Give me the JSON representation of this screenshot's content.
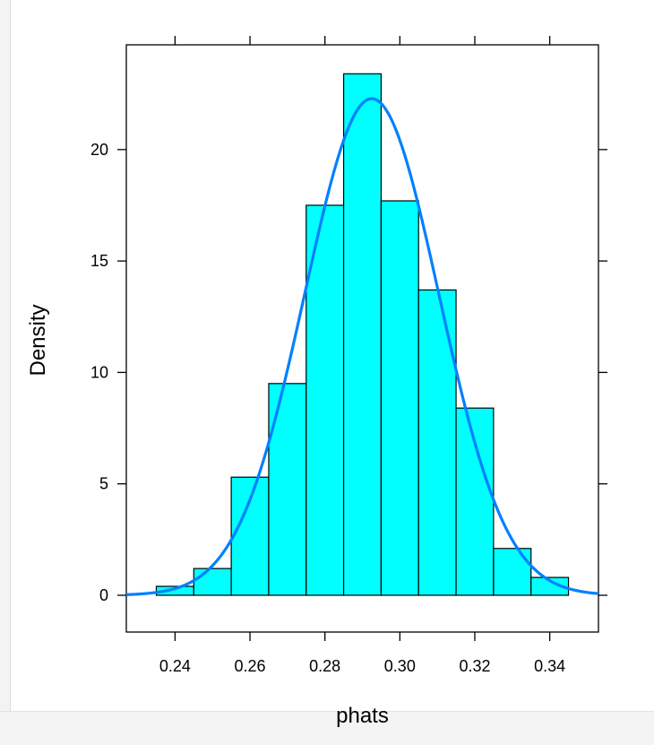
{
  "chart_data": {
    "type": "bar",
    "xlabel": "phats",
    "ylabel": "Density",
    "xlim": [
      0.227,
      0.353
    ],
    "ylim": [
      -1.65,
      24.7
    ],
    "x_ticks": [
      0.24,
      0.26,
      0.28,
      0.3,
      0.32,
      0.34
    ],
    "x_tick_labels": [
      "0.24",
      "0.26",
      "0.28",
      "0.30",
      "0.32",
      "0.34"
    ],
    "y_ticks": [
      0,
      5,
      10,
      15,
      20
    ],
    "y_tick_labels": [
      "0",
      "5",
      "10",
      "15",
      "20"
    ],
    "bin_edges": [
      0.235,
      0.245,
      0.255,
      0.265,
      0.275,
      0.285,
      0.295,
      0.305,
      0.315,
      0.325,
      0.335,
      0.345
    ],
    "values": [
      0.4,
      1.2,
      5.3,
      9.5,
      17.5,
      23.4,
      17.7,
      13.7,
      8.4,
      2.1,
      0.8
    ],
    "density_curve": {
      "type": "normal",
      "mean": 0.2925,
      "sd": 0.0179
    },
    "grid": false,
    "colors": {
      "bar_fill": "#00ffff",
      "bar_stroke": "#000000",
      "curve": "#0080ff"
    }
  }
}
